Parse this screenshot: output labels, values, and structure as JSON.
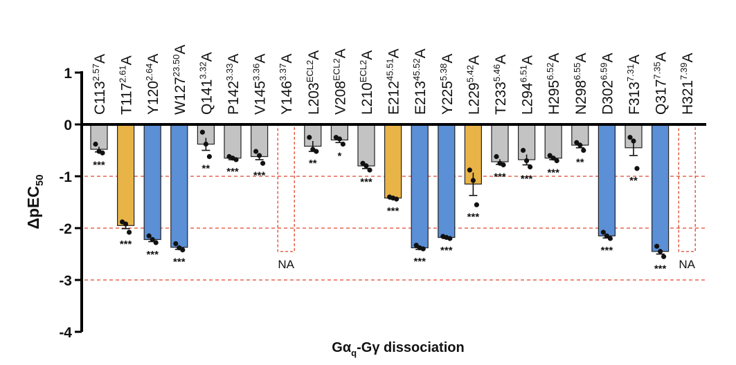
{
  "chart_data": {
    "type": "bar",
    "xlabel": "Gαq-Gγ dissociation",
    "xlabel_parts": {
      "pre": "Gα",
      "sub": "q",
      "post": "-Gγ dissociation"
    },
    "ylabel": "ΔpEC50",
    "ylabel_parts": {
      "pre": "ΔpEC",
      "sub": "50"
    },
    "ylim": [
      -4,
      1
    ],
    "yticks": [
      1,
      0,
      -1,
      -2,
      -3,
      -4
    ],
    "reference_lines": [
      -1,
      -2,
      -3
    ],
    "colors": {
      "gray": "#c3c3c3",
      "orange": "#e8b448",
      "blue": "#5b8fd6",
      "axis": "#000000",
      "dashed": "#e0452a",
      "na_box": "#e0452a"
    },
    "categories": [
      {
        "res": "C113",
        "sup": "2.57",
        "suffix": "A",
        "value": -0.48,
        "err": 0.05,
        "color": "gray",
        "sig": "***",
        "pts": [
          -0.38,
          -0.52,
          -0.55
        ]
      },
      {
        "res": "T117",
        "sup": "2.61",
        "suffix": "A",
        "value": -1.95,
        "err": 0.06,
        "color": "orange",
        "sig": "***",
        "pts": [
          -1.88,
          -1.92,
          -2.08
        ]
      },
      {
        "res": "Y120",
        "sup": "2.64",
        "suffix": "A",
        "value": -2.22,
        "err": 0.04,
        "color": "blue",
        "sig": "***",
        "pts": [
          -2.15,
          -2.22,
          -2.28
        ]
      },
      {
        "res": "W127",
        "sup": "23.50",
        "suffix": "A",
        "value": -2.37,
        "err": 0.04,
        "color": "blue",
        "sig": "***",
        "pts": [
          -2.3,
          -2.38,
          -2.42
        ]
      },
      {
        "res": "Q141",
        "sup": "3.32",
        "suffix": "A",
        "value": -0.38,
        "err": 0.12,
        "color": "gray",
        "sig": "**",
        "pts": [
          -0.15,
          -0.38,
          -0.62
        ]
      },
      {
        "res": "P142",
        "sup": "3.33",
        "suffix": "A",
        "value": -0.65,
        "err": 0.03,
        "color": "gray",
        "sig": "***",
        "pts": [
          -0.62,
          -0.65,
          -0.68
        ]
      },
      {
        "res": "V145",
        "sup": "3.36",
        "suffix": "A",
        "value": -0.62,
        "err": 0.06,
        "color": "gray",
        "sig": "***",
        "pts": [
          -0.52,
          -0.6,
          -0.75
        ]
      },
      {
        "res": "Y146",
        "sup": "3.37",
        "suffix": "A",
        "value": null,
        "color": "na",
        "sig": "",
        "na_label": "NA"
      },
      {
        "res": "L203",
        "sup": "ECL2",
        "suffix": "A",
        "value": -0.42,
        "err": 0.1,
        "color": "gray",
        "sig": "**",
        "pts": [
          -0.25,
          -0.48,
          -0.52
        ]
      },
      {
        "res": "V208",
        "sup": "ECL2",
        "suffix": "A",
        "value": -0.3,
        "err": 0.05,
        "color": "gray",
        "sig": "*",
        "pts": [
          -0.25,
          -0.28,
          -0.38
        ]
      },
      {
        "res": "L210",
        "sup": "ECL2",
        "suffix": "A",
        "value": -0.8,
        "err": 0.05,
        "color": "gray",
        "sig": "***",
        "pts": [
          -0.75,
          -0.8,
          -0.88
        ]
      },
      {
        "res": "E212",
        "sup": "45.51",
        "suffix": "A",
        "value": -1.42,
        "err": 0.02,
        "color": "orange",
        "sig": "***",
        "pts": [
          -1.4,
          -1.42,
          -1.44
        ]
      },
      {
        "res": "E213",
        "sup": "45.52",
        "suffix": "A",
        "value": -2.38,
        "err": 0.03,
        "color": "blue",
        "sig": "***",
        "pts": [
          -2.33,
          -2.38,
          -2.4
        ]
      },
      {
        "res": "Y225",
        "sup": "5.38",
        "suffix": "A",
        "value": -2.18,
        "err": 0.02,
        "color": "blue",
        "sig": "***",
        "pts": [
          -2.16,
          -2.18,
          -2.2
        ]
      },
      {
        "res": "L229",
        "sup": "5.42",
        "suffix": "A",
        "value": -1.15,
        "err": 0.22,
        "color": "orange",
        "sig": "***",
        "pts": [
          -0.88,
          -1.08,
          -1.55
        ]
      },
      {
        "res": "T233",
        "sup": "5.46",
        "suffix": "A",
        "value": -0.72,
        "err": 0.05,
        "color": "gray",
        "sig": "***",
        "pts": [
          -0.62,
          -0.75,
          -0.78
        ]
      },
      {
        "res": "L294",
        "sup": "6.51",
        "suffix": "A",
        "value": -0.68,
        "err": 0.1,
        "color": "gray",
        "sig": "***",
        "pts": [
          -0.5,
          -0.7,
          -0.82
        ]
      },
      {
        "res": "H295",
        "sup": "6.52",
        "suffix": "A",
        "value": -0.65,
        "err": 0.03,
        "color": "gray",
        "sig": "***",
        "pts": [
          -0.6,
          -0.65,
          -0.7
        ]
      },
      {
        "res": "N298",
        "sup": "6.55",
        "suffix": "A",
        "value": -0.4,
        "err": 0.05,
        "color": "gray",
        "sig": "**",
        "pts": [
          -0.35,
          -0.4,
          -0.5
        ]
      },
      {
        "res": "D302",
        "sup": "6.59",
        "suffix": "A",
        "value": -2.15,
        "err": 0.04,
        "color": "blue",
        "sig": "***",
        "pts": [
          -2.08,
          -2.15,
          -2.2
        ]
      },
      {
        "res": "F313",
        "sup": "7.31",
        "suffix": "A",
        "value": -0.45,
        "err": 0.15,
        "color": "gray",
        "sig": "**",
        "pts": [
          -0.25,
          -0.32,
          -0.85
        ]
      },
      {
        "res": "Q317",
        "sup": "7.35",
        "suffix": "A",
        "value": -2.45,
        "err": 0.05,
        "color": "blue",
        "sig": "***",
        "pts": [
          -2.35,
          -2.45,
          -2.55
        ]
      },
      {
        "res": "H321",
        "sup": "7.39",
        "suffix": "A",
        "value": null,
        "color": "na",
        "sig": "",
        "na_label": "NA"
      }
    ]
  }
}
